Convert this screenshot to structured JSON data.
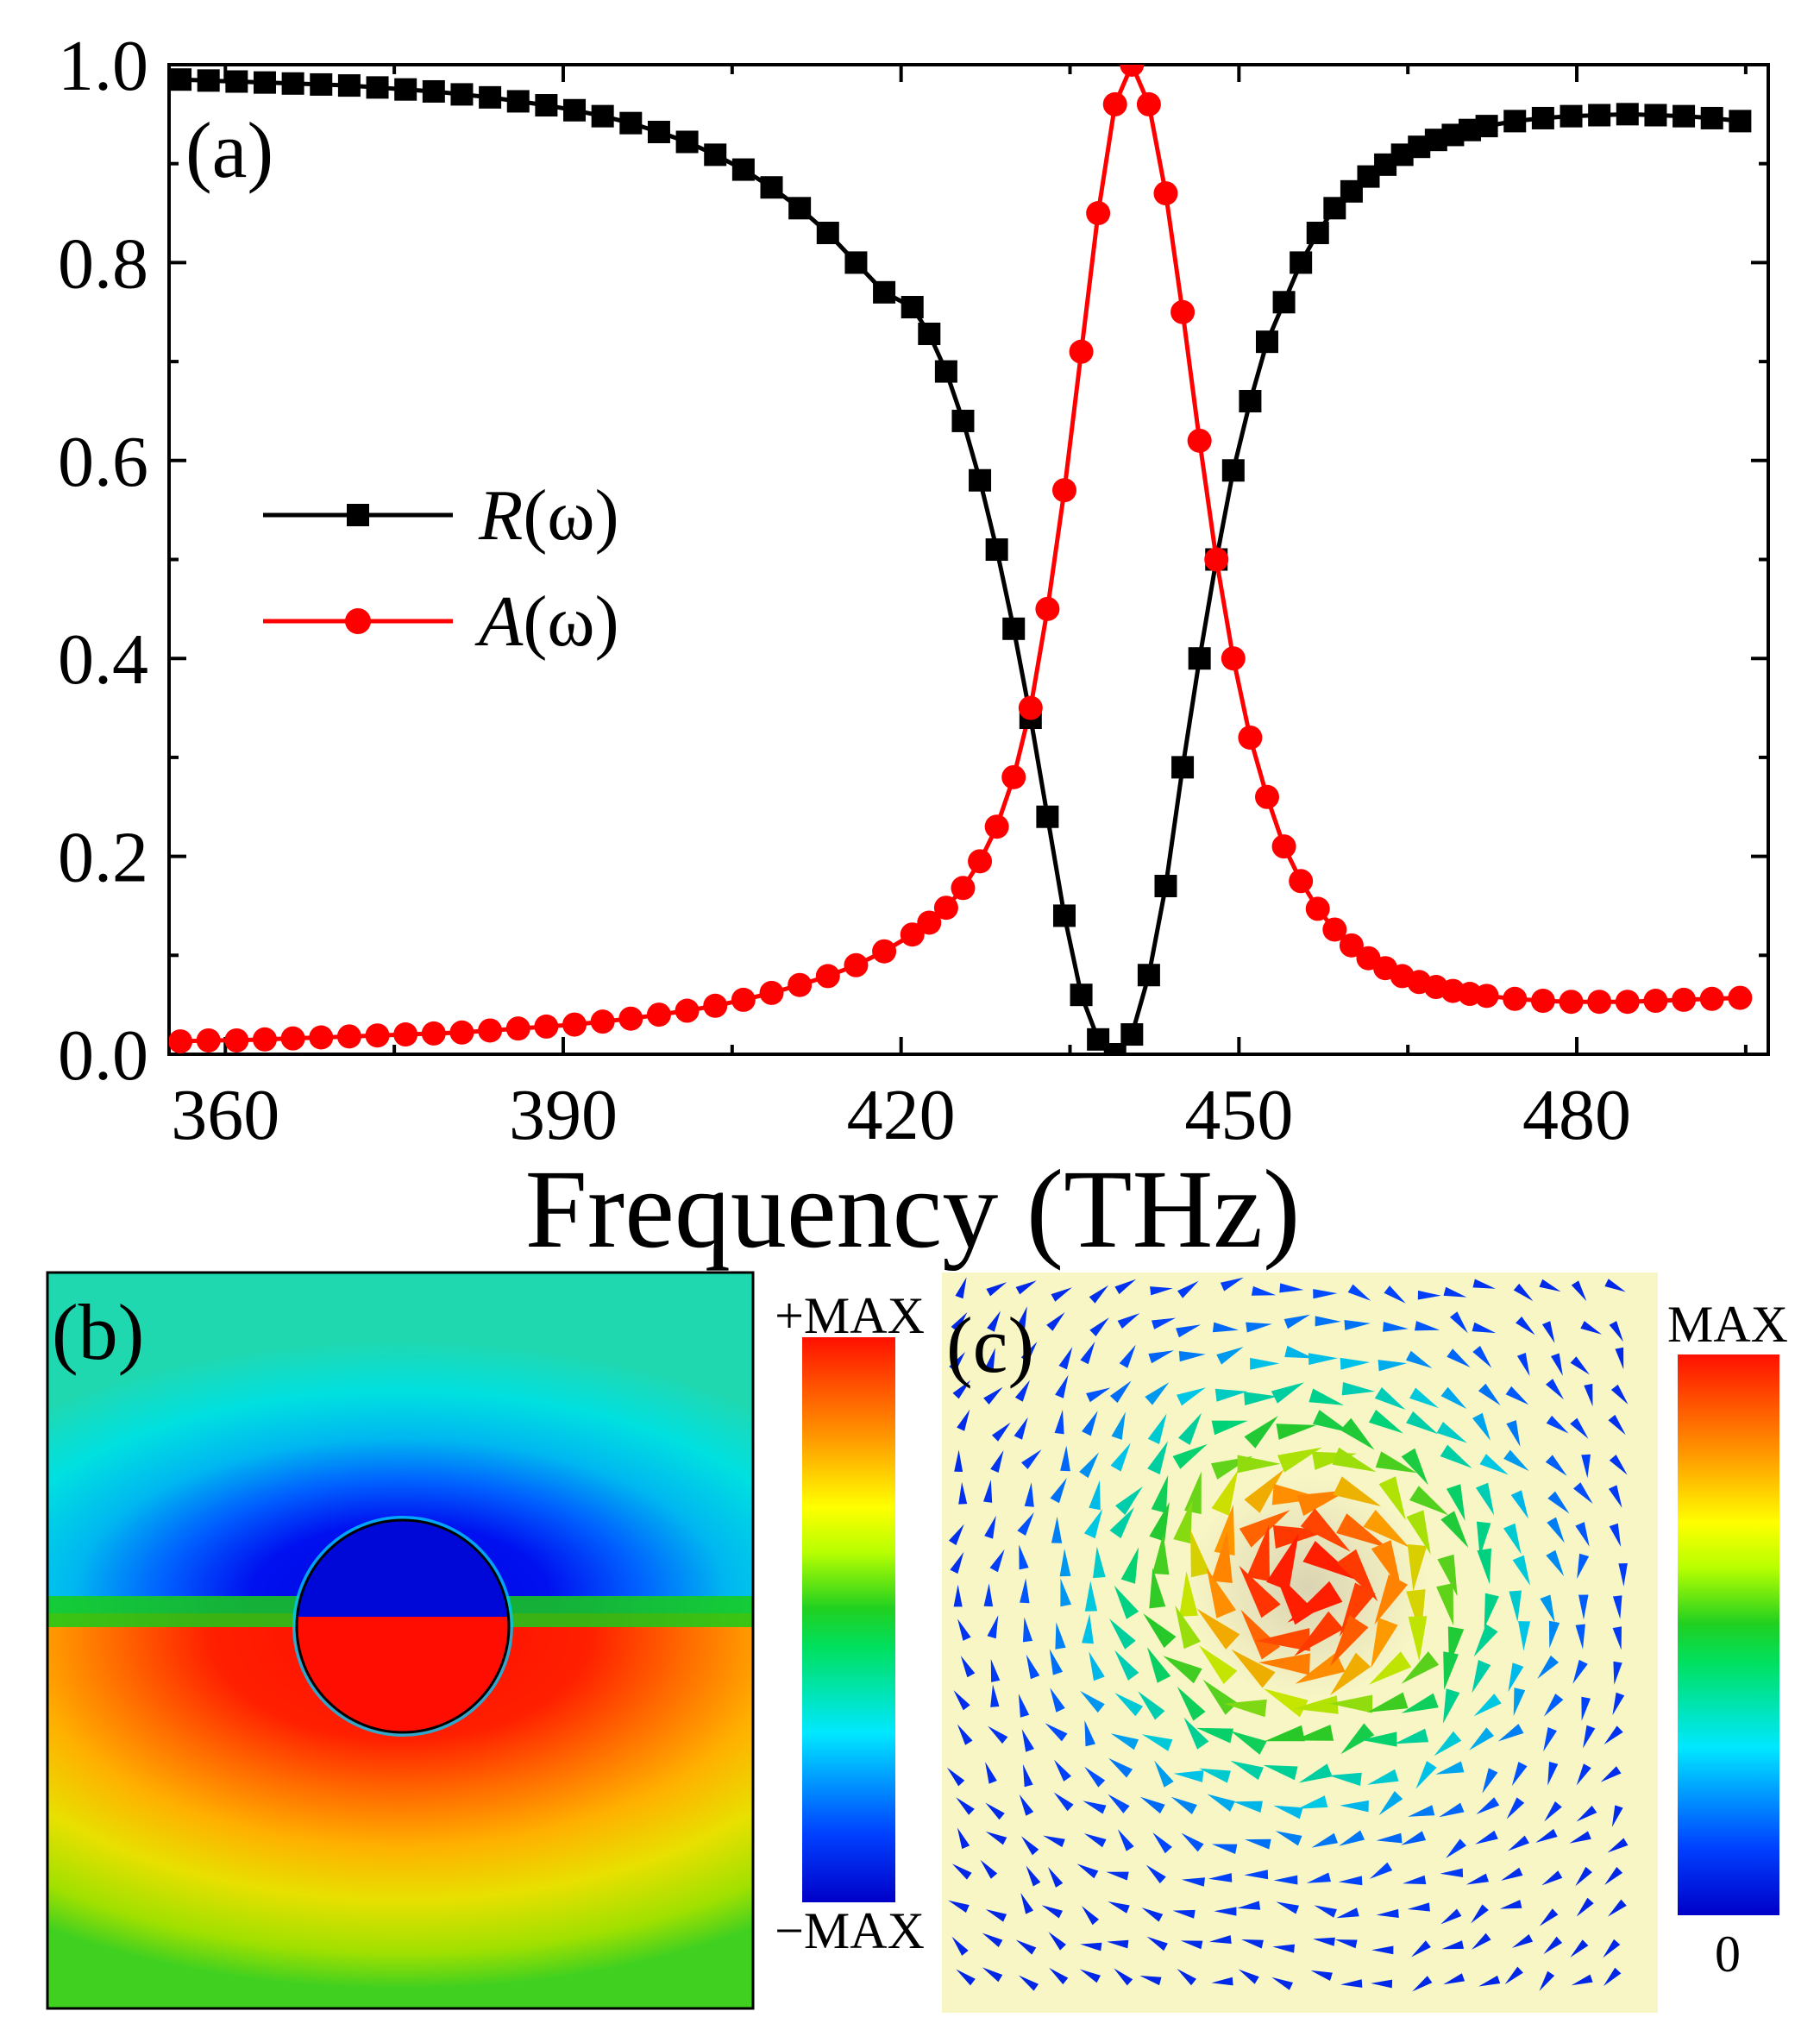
{
  "chart_data": [
    {
      "panel": "(a)",
      "type": "line",
      "xlabel": "Frequency (THz)",
      "ylabel": "",
      "xlim": [
        355,
        497
      ],
      "ylim": [
        0.0,
        1.0
      ],
      "xticks": [
        "360",
        "390",
        "420",
        "450",
        "480"
      ],
      "yticks": [
        "0.0",
        "0.2",
        "0.4",
        "0.6",
        "0.8",
        "1.0"
      ],
      "legend_position": "center-left",
      "series": [
        {
          "name": "R(ω)",
          "name_italic": "R",
          "name_rest": "(ω)",
          "color": "#000000",
          "marker": "square",
          "x": [
            356,
            358.5,
            361,
            363.5,
            366,
            368.5,
            371,
            373.5,
            376,
            378.5,
            381,
            383.5,
            386,
            388.5,
            391,
            393.5,
            396,
            398.5,
            401,
            403.5,
            406,
            408.5,
            411,
            413.5,
            416,
            418.5,
            421,
            422.5,
            424,
            425.5,
            427,
            428.5,
            430,
            431.5,
            433,
            434.5,
            436,
            437.5,
            439,
            440.5,
            442,
            443.5,
            445,
            446.5,
            448,
            449.5,
            451,
            452.5,
            454,
            455.5,
            457,
            458.5,
            460,
            461.5,
            463,
            464.5,
            466,
            467.5,
            469,
            470.5,
            472,
            474.5,
            477,
            479.5,
            482,
            484.5,
            487,
            489.5,
            492,
            494.5
          ],
          "y": [
            0.985,
            0.984,
            0.983,
            0.982,
            0.981,
            0.98,
            0.979,
            0.977,
            0.975,
            0.973,
            0.97,
            0.967,
            0.963,
            0.959,
            0.954,
            0.948,
            0.941,
            0.932,
            0.922,
            0.909,
            0.894,
            0.876,
            0.855,
            0.83,
            0.8,
            0.77,
            0.755,
            0.728,
            0.69,
            0.64,
            0.58,
            0.51,
            0.43,
            0.34,
            0.24,
            0.14,
            0.06,
            0.015,
            0.0,
            0.02,
            0.08,
            0.17,
            0.29,
            0.4,
            0.5,
            0.59,
            0.66,
            0.72,
            0.76,
            0.8,
            0.83,
            0.855,
            0.872,
            0.887,
            0.899,
            0.909,
            0.917,
            0.924,
            0.929,
            0.934,
            0.938,
            0.943,
            0.946,
            0.948,
            0.949,
            0.95,
            0.949,
            0.948,
            0.946,
            0.943
          ]
        },
        {
          "name": "A(ω)",
          "name_italic": "A",
          "name_rest": "(ω)",
          "color": "#ff0000",
          "marker": "circle",
          "x": [
            356,
            358.5,
            361,
            363.5,
            366,
            368.5,
            371,
            373.5,
            376,
            378.5,
            381,
            383.5,
            386,
            388.5,
            391,
            393.5,
            396,
            398.5,
            401,
            403.5,
            406,
            408.5,
            411,
            413.5,
            416,
            418.5,
            421,
            422.5,
            424,
            425.5,
            427,
            428.5,
            430,
            431.5,
            433,
            434.5,
            436,
            437.5,
            439,
            440.5,
            442,
            443.5,
            445,
            446.5,
            448,
            449.5,
            451,
            452.5,
            454,
            455.5,
            457,
            458.5,
            460,
            461.5,
            463,
            464.5,
            466,
            467.5,
            469,
            470.5,
            472,
            474.5,
            477,
            479.5,
            482,
            484.5,
            487,
            489.5,
            492,
            494.5
          ],
          "y": [
            0.013,
            0.014,
            0.014,
            0.015,
            0.016,
            0.017,
            0.018,
            0.019,
            0.02,
            0.021,
            0.022,
            0.024,
            0.026,
            0.028,
            0.03,
            0.033,
            0.036,
            0.04,
            0.044,
            0.049,
            0.055,
            0.062,
            0.07,
            0.079,
            0.09,
            0.104,
            0.121,
            0.133,
            0.148,
            0.168,
            0.195,
            0.23,
            0.28,
            0.35,
            0.45,
            0.57,
            0.71,
            0.85,
            0.96,
            1.0,
            0.96,
            0.87,
            0.75,
            0.62,
            0.5,
            0.4,
            0.32,
            0.26,
            0.21,
            0.175,
            0.147,
            0.126,
            0.11,
            0.097,
            0.087,
            0.079,
            0.073,
            0.068,
            0.064,
            0.061,
            0.059,
            0.056,
            0.054,
            0.053,
            0.053,
            0.053,
            0.054,
            0.055,
            0.056,
            0.057
          ]
        }
      ]
    },
    {
      "panel": "(b)",
      "type": "heatmap",
      "colormap": "jet",
      "colorbar_top_label": "+MAX",
      "colorbar_bottom_label": "−MAX"
    },
    {
      "panel": "(c)",
      "type": "vector-field",
      "colormap": "jet",
      "background_color": "#f8f6c5",
      "colorbar_top_label": "MAX",
      "colorbar_bottom_label": "0"
    }
  ]
}
